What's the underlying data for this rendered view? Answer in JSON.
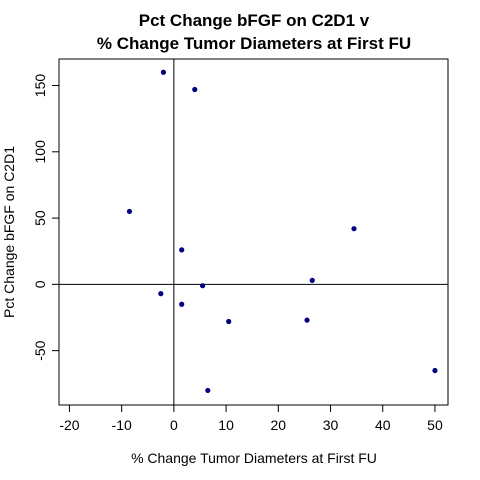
{
  "chart_data": {
    "type": "scatter",
    "title_line1": "Pct Change bFGF on C2D1 v",
    "title_line2": "% Change Tumor Diameters at First FU",
    "xlabel": "% Change Tumor Diameters at First FU",
    "ylabel": "Pct Change bFGF on C2D1",
    "xlim": [
      -22,
      52.5
    ],
    "ylim": [
      -91,
      170
    ],
    "xticks": [
      -20,
      -10,
      0,
      10,
      20,
      30,
      40,
      50
    ],
    "yticks": [
      -50,
      0,
      50,
      100,
      150
    ],
    "reference_lines": {
      "x": 0,
      "y": 0
    },
    "grid": false,
    "point_color": "#000080",
    "points": [
      {
        "x": -2.0,
        "y": 160
      },
      {
        "x": 4.0,
        "y": 147
      },
      {
        "x": -8.5,
        "y": 55
      },
      {
        "x": 34.5,
        "y": 42
      },
      {
        "x": 1.5,
        "y": 26
      },
      {
        "x": 26.5,
        "y": 3
      },
      {
        "x": 5.5,
        "y": -1
      },
      {
        "x": -2.5,
        "y": -7
      },
      {
        "x": 1.5,
        "y": -15
      },
      {
        "x": 10.5,
        "y": -28
      },
      {
        "x": 25.5,
        "y": -27
      },
      {
        "x": 50.0,
        "y": -65
      },
      {
        "x": 6.5,
        "y": -80
      }
    ]
  }
}
